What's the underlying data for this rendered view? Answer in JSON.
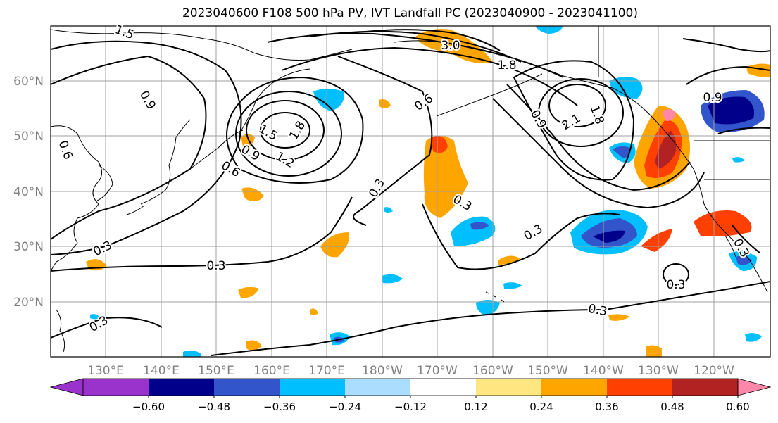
{
  "title": "2023040600 F108 500 hPa PV, IVT Landfall PC (2023040900 - 2023041100)",
  "lat_labels": [
    "60°N",
    "50°N",
    "40°N",
    "30°N",
    "20°N"
  ],
  "lon_labels": [
    "130°E",
    "140°E",
    "150°E",
    "160°E",
    "170°E",
    "180°W",
    "170°W",
    "160°W",
    "150°W",
    "140°W",
    "130°W",
    "120°W"
  ],
  "colorbar": {
    "ticks": [
      "−0.60",
      "−0.48",
      "−0.36",
      "−0.24",
      "−0.12",
      "0.12",
      "0.24",
      "0.36",
      "0.48",
      "0.60"
    ],
    "colors": [
      "#9933cc",
      "#00008b",
      "#3355cc",
      "#00bfff",
      "#aaddff",
      "#ffffff",
      "#ffe680",
      "#ffa500",
      "#ff4000",
      "#b22222",
      "#ff88aa"
    ]
  },
  "contour_labels": [
    "3.0",
    "1.8",
    "1.8",
    "1.5",
    "1.2",
    "0.9",
    "0.6",
    "0.6",
    "0.9",
    "2.1",
    "1.8",
    "0.9",
    "0.3",
    "0.3",
    "0.3",
    "0.3",
    "0.3",
    "0.3",
    "0.3",
    "0.3",
    "0.6",
    "0.3",
    "1.5",
    "0.9"
  ]
}
